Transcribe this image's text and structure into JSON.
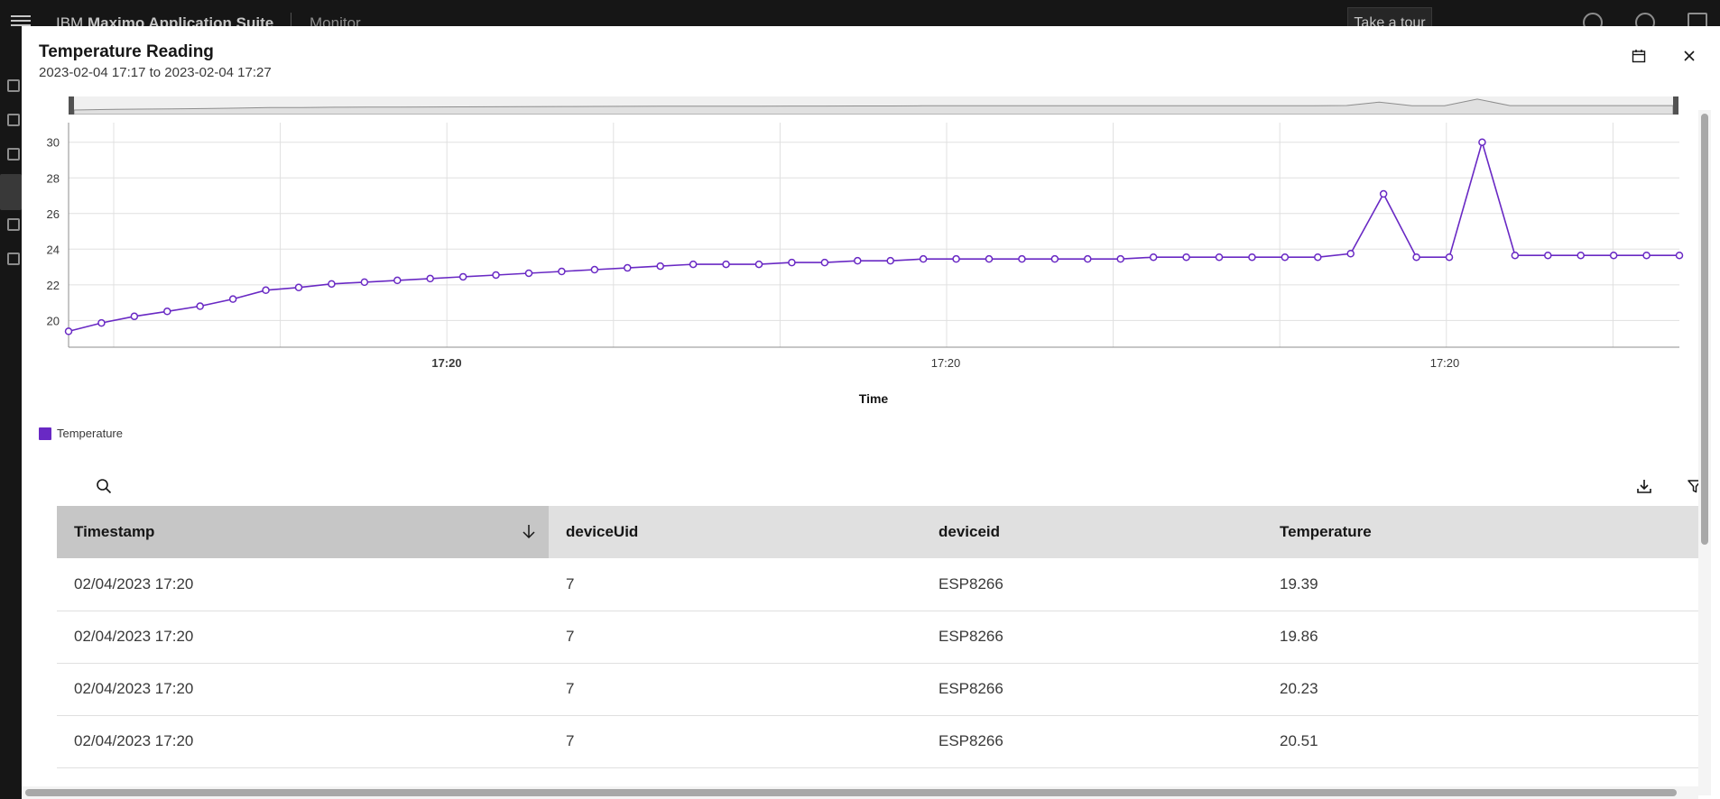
{
  "topbar": {
    "brand_prefix": "IBM",
    "brand_name": "Maximo Application Suite",
    "app": "Monitor",
    "tour_button": "Take a tour"
  },
  "modal": {
    "title": "Temperature Reading",
    "subtitle": "2023-02-04 17:17 to 2023-02-04 17:27"
  },
  "chart_data": {
    "type": "line",
    "title": "",
    "xlabel": "Time",
    "ylabel": "",
    "ylim": [
      18.5,
      31.1
    ],
    "y_ticks": [
      "30",
      "28",
      "26",
      "24",
      "22",
      "20"
    ],
    "x_tick_labels": [
      {
        "label": "17:20",
        "bold": true
      },
      {
        "label": "17:20",
        "bold": false
      },
      {
        "label": "17:20",
        "bold": false
      }
    ],
    "legend_position": "bottom-left",
    "color": "#6929c4",
    "series": [
      {
        "name": "Temperature",
        "values": [
          19.39,
          19.86,
          20.23,
          20.51,
          20.8,
          21.2,
          21.7,
          21.85,
          22.05,
          22.15,
          22.25,
          22.35,
          22.45,
          22.55,
          22.65,
          22.75,
          22.85,
          22.95,
          23.05,
          23.15,
          23.15,
          23.15,
          23.25,
          23.25,
          23.35,
          23.35,
          23.45,
          23.45,
          23.45,
          23.45,
          23.45,
          23.45,
          23.45,
          23.55,
          23.55,
          23.55,
          23.55,
          23.55,
          23.55,
          23.75,
          27.1,
          23.55,
          23.55,
          30.0,
          23.65,
          23.65,
          23.65,
          23.65,
          23.65,
          23.65
        ]
      }
    ]
  },
  "table": {
    "columns": [
      "Timestamp",
      "deviceUid",
      "deviceid",
      "Temperature"
    ],
    "rows": [
      [
        "02/04/2023 17:20",
        "7",
        "ESP8266",
        "19.39"
      ],
      [
        "02/04/2023 17:20",
        "7",
        "ESP8266",
        "19.86"
      ],
      [
        "02/04/2023 17:20",
        "7",
        "ESP8266",
        "20.23"
      ],
      [
        "02/04/2023 17:20",
        "7",
        "ESP8266",
        "20.51"
      ]
    ]
  },
  "icons": {
    "menu": "hamburger-menu-icon",
    "calendar": "calendar-icon",
    "close": "close-icon",
    "search": "search-icon",
    "download": "download-icon",
    "filter": "filter-icon",
    "sort": "arrow-down-icon"
  }
}
